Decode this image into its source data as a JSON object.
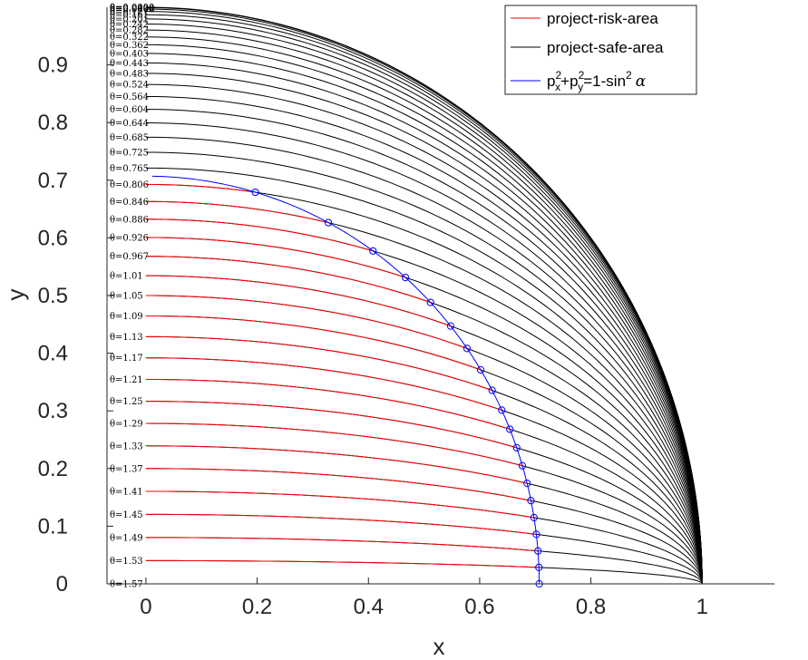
{
  "chart_data": {
    "type": "line",
    "xlabel": "x",
    "ylabel": "y",
    "xlim": [
      -0.07,
      1.13
    ],
    "ylim": [
      0,
      1.0
    ],
    "xticks": [
      "0",
      "0.2",
      "0.4",
      "0.6",
      "0.8",
      "1"
    ],
    "yticks": [
      "0",
      "0.1",
      "0.2",
      "0.3",
      "0.4",
      "0.5",
      "0.6",
      "0.7",
      "0.8",
      "0.9"
    ],
    "grid": false,
    "legend_position": "top-right",
    "legend": [
      {
        "label": "project-risk-area",
        "color": "#ff0000"
      },
      {
        "label": "project-safe-area",
        "color": "#000000"
      },
      {
        "label_parts": {
          "p": "p",
          "x": "x",
          "y": "y",
          "two": "2",
          "plus": "+",
          "eq1": "=1-sin",
          "alpha": "α"
        },
        "color": "#0000ff"
      }
    ],
    "theta_labels": [
      "θ=0.0000",
      "θ=0.0403",
      "θ=0.0806",
      "θ=0.121",
      "θ=0.161",
      "θ=0.201",
      "θ=0.242",
      "θ=0.282",
      "θ=0.322",
      "θ=0.362",
      "θ=0.403",
      "θ=0.443",
      "θ=0.483",
      "θ=0.524",
      "θ=0.564",
      "θ=0.604",
      "θ=0.644",
      "θ=0.685",
      "θ=0.725",
      "θ=0.765",
      "θ=0.806",
      "θ=0.846",
      "θ=0.886",
      "θ=0.926",
      "θ=0.967",
      "θ=1.01",
      "θ=1.05",
      "θ=1.09",
      "θ=1.13",
      "θ=1.17",
      "θ=1.21",
      "θ=1.25",
      "θ=1.29",
      "θ=1.33",
      "θ=1.37",
      "θ=1.41",
      "θ=1.45",
      "θ=1.49",
      "θ=1.53",
      "θ=1.57"
    ],
    "theta_start": 0,
    "theta_end": 1.5708,
    "curve_count": 40,
    "risk_from_index": 20,
    "boundary_radius": 0.7071,
    "colors": {
      "risk": "#ff0000",
      "safe": "#000000",
      "boundary": "#0000ff",
      "axis": "#262626"
    }
  }
}
